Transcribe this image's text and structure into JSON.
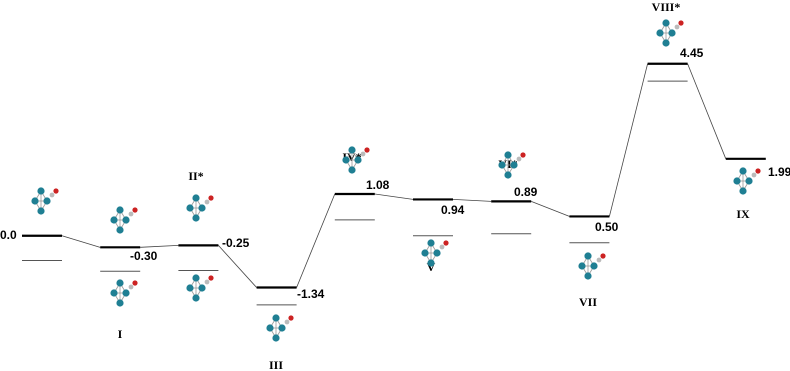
{
  "chart_data": {
    "type": "energy-profile",
    "categories": [
      null,
      "I",
      "II*",
      "III",
      "IV*",
      "V",
      "VI*",
      "VII",
      "VIII*",
      "IX"
    ],
    "values": [
      0.0,
      -0.3,
      -0.25,
      -1.34,
      1.08,
      0.94,
      0.89,
      0.5,
      4.45,
      1.99
    ],
    "value_labels": [
      "0.0",
      "-0.30",
      "-0.25",
      "-1.34",
      "1.08",
      "0.94",
      "0.89",
      "0.50",
      "4.45",
      "1.99"
    ],
    "lower_values": [
      -0.64,
      -0.92,
      -0.9,
      -1.79,
      0.41,
      0.0,
      0.05,
      -0.18,
      4.0,
      null
    ],
    "color": "#000000",
    "lower_color": "#555555",
    "ylim": [
      -3.5,
      6.1
    ]
  }
}
